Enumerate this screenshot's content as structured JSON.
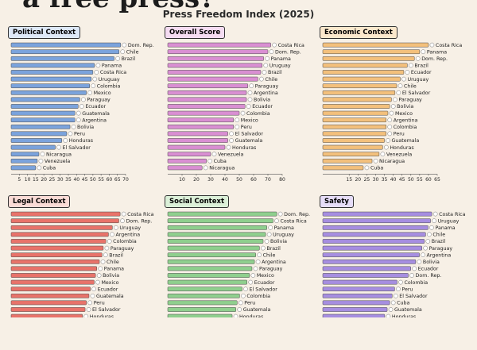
{
  "header": {
    "headline": "a free press?",
    "subtitle": "Press Freedom Index (2025)"
  },
  "chart_data": [
    {
      "type": "bar",
      "orientation": "horizontal",
      "title": "Political Context",
      "color": "#7ba3dc",
      "title_bg": "#dde8f7",
      "xlim": [
        0,
        70
      ],
      "xticks": [
        5,
        10,
        15,
        20,
        25,
        30,
        35,
        40,
        45,
        50,
        55,
        60,
        65,
        70
      ],
      "categories": [
        "Dom. Rep.",
        "Chile",
        "Brazil",
        "Panama",
        "Costa Rica",
        "Uruguay",
        "Colombia",
        "Mexico",
        "Paraguay",
        "Ecuador",
        "Guatemala",
        "Argentina",
        "Bolivia",
        "Peru",
        "Honduras",
        "El Salvador",
        "Nicaragua",
        "Venezuela",
        "Cuba"
      ],
      "values": [
        67,
        66,
        63,
        51,
        50,
        49,
        48,
        46,
        42,
        41,
        39,
        39,
        36,
        34,
        31,
        27,
        17,
        16,
        15
      ]
    },
    {
      "type": "bar",
      "orientation": "horizontal",
      "title": "Overall Score",
      "color": "#d98fd2",
      "title_bg": "#f5dcf2",
      "xlim": [
        0,
        80
      ],
      "xticks": [
        10,
        20,
        30,
        40,
        50,
        60,
        70,
        80
      ],
      "categories": [
        "Costa Rica",
        "Dom. Rep.",
        "Panama",
        "Uruguay",
        "Brazil",
        "Chile",
        "Paraguay",
        "Argentina",
        "Bolivia",
        "Ecuador",
        "Colombia",
        "Mexico",
        "Peru",
        "El Salvador",
        "Guatemala",
        "Honduras",
        "Venezuela",
        "Cuba",
        "Nicaragua"
      ],
      "values": [
        72,
        70,
        67,
        66,
        65,
        63,
        56,
        55,
        55,
        54,
        50,
        46,
        46,
        42,
        42,
        40,
        30,
        27,
        24
      ]
    },
    {
      "type": "bar",
      "orientation": "horizontal",
      "title": "Economic Context",
      "color": "#f3c07c",
      "title_bg": "#fbe8cc",
      "xlim": [
        0,
        65
      ],
      "xticks": [
        15,
        20,
        25,
        30,
        35,
        40,
        45,
        50,
        55,
        60,
        65
      ],
      "categories": [
        "Costa Rica",
        "Panama",
        "Dom. Rep.",
        "Brazil",
        "Ecuador",
        "Uruguay",
        "Chile",
        "El Salvador",
        "Paraguay",
        "Bolivia",
        "Mexico",
        "Argentina",
        "Colombia",
        "Peru",
        "Guatemala",
        "Honduras",
        "Venezuela",
        "Nicaragua",
        "Cuba"
      ],
      "values": [
        60,
        55,
        52,
        48,
        46,
        44,
        42,
        41,
        39,
        38,
        37,
        36,
        36,
        36,
        35,
        34,
        32,
        28,
        23
      ]
    },
    {
      "type": "bar",
      "orientation": "horizontal",
      "title": "Legal Context",
      "color": "#e8736a",
      "title_bg": "#fadbd6",
      "categories": [
        "Costa Rica",
        "Dom. Rep.",
        "Uruguay",
        "Argentina",
        "Colombia",
        "Paraguay",
        "Brazil",
        "Chile",
        "Panama",
        "Bolivia",
        "Mexico",
        "Ecuador",
        "Guatemala",
        "Peru",
        "El Salvador",
        "Honduras"
      ],
      "values": [
        84,
        83,
        78,
        75,
        73,
        71,
        70,
        68,
        66,
        65,
        64,
        61,
        60,
        58,
        57,
        55
      ]
    },
    {
      "type": "bar",
      "orientation": "horizontal",
      "title": "Social Context",
      "color": "#8fcf8e",
      "title_bg": "#dbf0d8",
      "categories": [
        "Dom. Rep.",
        "Costa Rica",
        "Panama",
        "Uruguay",
        "Bolivia",
        "Brazil",
        "Chile",
        "Argentina",
        "Paraguay",
        "Mexico",
        "Ecuador",
        "El Salvador",
        "Colombia",
        "Peru",
        "Guatemala",
        "Honduras"
      ],
      "values": [
        88,
        85,
        80,
        79,
        77,
        74,
        71,
        70,
        68,
        66,
        64,
        60,
        58,
        56,
        55,
        52
      ]
    },
    {
      "type": "bar",
      "orientation": "horizontal",
      "title": "Safety",
      "color": "#a68ee0",
      "title_bg": "#e6ddf8",
      "categories": [
        "Costa Rica",
        "Uruguay",
        "Panama",
        "Chile",
        "Brazil",
        "Paraguay",
        "Argentina",
        "Bolivia",
        "Ecuador",
        "Dom. Rep.",
        "Colombia",
        "Peru",
        "El Salvador",
        "Cuba",
        "Guatemala",
        "Honduras"
      ],
      "values": [
        88,
        87,
        85,
        83,
        82,
        80,
        78,
        75,
        71,
        69,
        60,
        58,
        56,
        54,
        52,
        50
      ]
    }
  ]
}
